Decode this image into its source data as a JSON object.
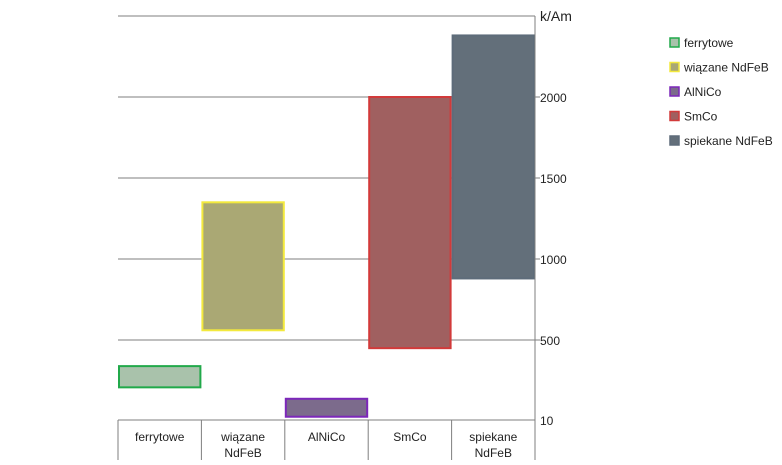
{
  "chart_data": {
    "type": "bar",
    "subtype": "floating-range",
    "categories": [
      "ferrytowe",
      "wiązane NdFeB",
      "AlNiCo",
      "SmCo",
      "spiekane NdFeB"
    ],
    "category_lines": [
      [
        "ferrytowe"
      ],
      [
        "wiązane",
        "NdFeB"
      ],
      [
        "AlNiCo"
      ],
      [
        "SmCo"
      ],
      [
        "spiekane",
        "NdFeB"
      ]
    ],
    "series": [
      {
        "name": "ferrytowe",
        "low": 210,
        "high": 340,
        "fill": "#a9c2ab",
        "stroke": "#21a94a"
      },
      {
        "name": "wiązane NdFeB",
        "low": 560,
        "high": 1350,
        "fill": "#aaa874",
        "stroke": "#f3e93d"
      },
      {
        "name": "AlNiCo",
        "low": 30,
        "high": 140,
        "fill": "#7c6b8c",
        "stroke": "#7c27ba"
      },
      {
        "name": "SmCo",
        "low": 450,
        "high": 2000,
        "fill": "#a06060",
        "stroke": "#d23a3a"
      },
      {
        "name": "spiekane NdFeB",
        "low": 880,
        "high": 2380,
        "fill": "#636f7a",
        "stroke": "#5e6c7a"
      }
    ],
    "y_axis": {
      "unit_label": "k/Am",
      "position": "right",
      "ticks": [
        10,
        500,
        1000,
        1500,
        2000
      ],
      "tick_labels": [
        "10",
        "500",
        "1000",
        "1500",
        "2000"
      ],
      "ylim": [
        10,
        2500
      ]
    },
    "gridlines": true,
    "legend_position": "right"
  }
}
